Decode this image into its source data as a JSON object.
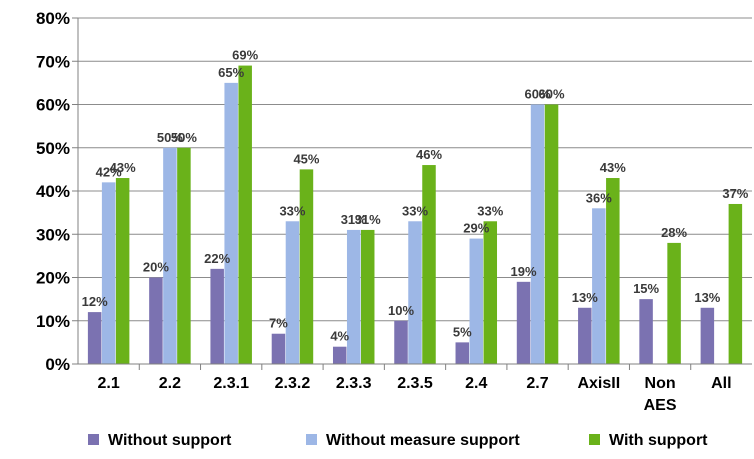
{
  "chart_data": {
    "type": "bar",
    "categories": [
      "2.1",
      "2.2",
      "2.3.1",
      "2.3.2",
      "2.3.3",
      "2.3.5",
      "2.4",
      "2.7",
      "AxisII",
      "Non AES",
      "All"
    ],
    "series": [
      {
        "name": "Without support",
        "color": "#7b72b1",
        "values": [
          12,
          20,
          22,
          7,
          4,
          10,
          5,
          19,
          13,
          15,
          13
        ],
        "labels": [
          "12%",
          "20%",
          "22%",
          "7%",
          "4%",
          "10%",
          "5%",
          "19%",
          "13%",
          "15%",
          "13%"
        ]
      },
      {
        "name": "Without measure support",
        "color": "#9db7e6",
        "values": [
          42,
          50,
          65,
          33,
          31,
          33,
          29,
          60,
          36,
          null,
          null
        ],
        "labels": [
          "42%",
          "50%",
          "65%",
          "33%",
          "31%",
          "33%",
          "29%",
          "60%",
          "36%",
          "",
          ""
        ]
      },
      {
        "name": "With support",
        "color": "#6ab21a",
        "values": [
          43,
          50,
          69,
          45,
          31,
          46,
          33,
          60,
          43,
          28,
          37
        ],
        "labels": [
          "43%",
          "50%",
          "69%",
          "45%",
          "31%",
          "46%",
          "33%",
          "60%",
          "43%",
          "28%",
          "37%"
        ]
      }
    ],
    "yticks": [
      "0%",
      "10%",
      "20%",
      "30%",
      "40%",
      "50%",
      "60%",
      "70%",
      "80%"
    ],
    "ylim": [
      0,
      80
    ],
    "grid": true,
    "legend_position": "bottom"
  }
}
